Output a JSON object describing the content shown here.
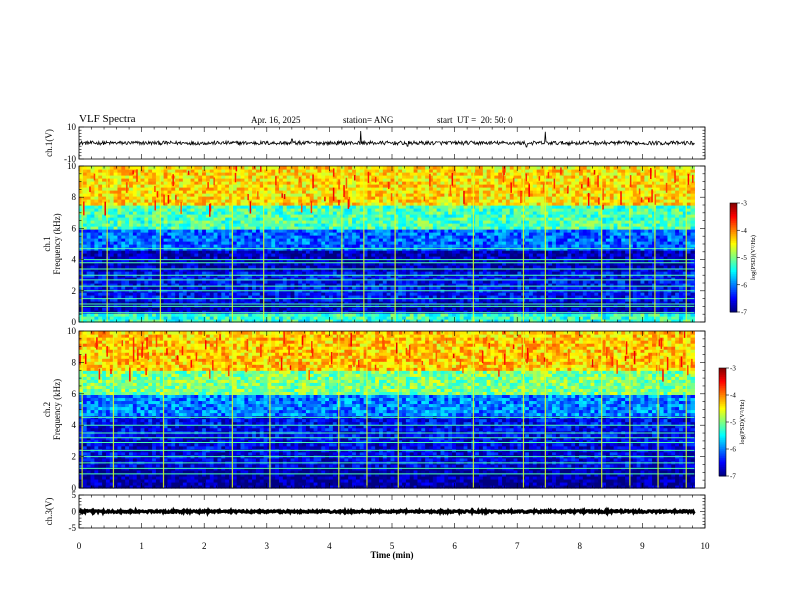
{
  "header": {
    "title": "VLF Spectra",
    "date": "Apr. 16, 2025",
    "station": "station= ANG",
    "start": "start  UT =  20: 50: 0"
  },
  "chart_data": [
    {
      "type": "line",
      "id": "ch1-waveform",
      "ylabel": "ch.1(V)",
      "ylim": [
        -10,
        10
      ],
      "yticks": [
        10,
        -10
      ],
      "xlim": [
        0,
        10
      ],
      "baseline": 0,
      "noise_amplitude": 1.2,
      "spikes": [
        {
          "x": 3.4,
          "y": 2.5
        },
        {
          "x": 4.5,
          "y": 7.5
        },
        {
          "x": 5.25,
          "y": -2.0
        },
        {
          "x": 7.15,
          "y": -2.5
        },
        {
          "x": 7.45,
          "y": 7.0
        }
      ]
    },
    {
      "type": "heatmap",
      "id": "ch1-spectrogram",
      "ylabel": "ch.1\nFrequency (kHz)",
      "ylim": [
        0,
        10
      ],
      "yticks": [
        0,
        2,
        4,
        6,
        8,
        10
      ],
      "xlim": [
        0,
        10
      ],
      "data_end_min": 9.83,
      "colorbar": {
        "label": "log(PSD)(V²/Hz)",
        "range": [
          -7,
          -3
        ],
        "ticks": [
          -3,
          -4,
          -5,
          -6,
          -7
        ]
      },
      "band_levels": [
        {
          "f_from": 0.0,
          "f_to": 0.6,
          "level": -5.3
        },
        {
          "f_from": 0.6,
          "f_to": 1.3,
          "level": -6.8
        },
        {
          "f_from": 1.3,
          "f_to": 3.3,
          "level": -6.5
        },
        {
          "f_from": 3.3,
          "f_to": 4.6,
          "level": -6.8
        },
        {
          "f_from": 4.6,
          "f_to": 6.0,
          "level": -6.1
        },
        {
          "f_from": 6.0,
          "f_to": 7.5,
          "level": -5.2
        },
        {
          "f_from": 7.5,
          "f_to": 10.0,
          "level": -4.4
        }
      ],
      "line_freqs_khz": [
        0.6,
        1.0,
        1.15,
        1.5,
        2.0,
        2.3,
        2.7,
        3.0,
        3.4,
        3.8,
        4.0,
        4.7
      ],
      "impulse_times_min": [
        0.05,
        0.45,
        1.3,
        2.45,
        2.95,
        4.2,
        4.55,
        5.05,
        6.3,
        7.1,
        7.45,
        8.35,
        8.8,
        9.2,
        9.7
      ]
    },
    {
      "type": "heatmap",
      "id": "ch2-spectrogram",
      "ylabel": "ch.2\nFrequency (kHz)",
      "ylim": [
        0,
        10
      ],
      "yticks": [
        0,
        2,
        4,
        6,
        8,
        10
      ],
      "xlim": [
        0,
        10
      ],
      "data_end_min": 9.83,
      "colorbar": {
        "label": "log(PSD)(V²/Hz)",
        "range": [
          -7,
          -3
        ],
        "ticks": [
          -3,
          -4,
          -5,
          -6,
          -7
        ]
      },
      "band_levels": [
        {
          "f_from": 0.0,
          "f_to": 0.6,
          "level": -6.9
        },
        {
          "f_from": 0.6,
          "f_to": 1.3,
          "level": -6.9
        },
        {
          "f_from": 1.3,
          "f_to": 3.3,
          "level": -6.6
        },
        {
          "f_from": 3.3,
          "f_to": 4.6,
          "level": -6.5
        },
        {
          "f_from": 4.6,
          "f_to": 6.0,
          "level": -6.0
        },
        {
          "f_from": 6.0,
          "f_to": 7.5,
          "level": -5.0
        },
        {
          "f_from": 7.5,
          "f_to": 10.0,
          "level": -4.3
        }
      ],
      "line_freqs_khz": [
        0.9,
        1.25,
        1.6,
        2.0,
        2.4,
        2.9,
        3.2,
        3.5,
        4.0,
        4.5
      ],
      "impulse_times_min": [
        0.05,
        0.55,
        1.35,
        2.45,
        3.05,
        4.15,
        4.6,
        5.1,
        6.3,
        7.1,
        7.45,
        8.35,
        8.8,
        9.25,
        9.7
      ]
    },
    {
      "type": "line",
      "id": "ch3-waveform",
      "ylabel": "ch.3(V)",
      "ylim": [
        -5,
        5
      ],
      "yticks": [
        5,
        0,
        -5
      ],
      "xlim": [
        0,
        10
      ],
      "baseline": 0,
      "noise_amplitude": 0.3
    }
  ],
  "x_axis": {
    "label": "Time (min)",
    "ticks": [
      0,
      1,
      2,
      3,
      4,
      5,
      6,
      7,
      8,
      9,
      10
    ]
  }
}
